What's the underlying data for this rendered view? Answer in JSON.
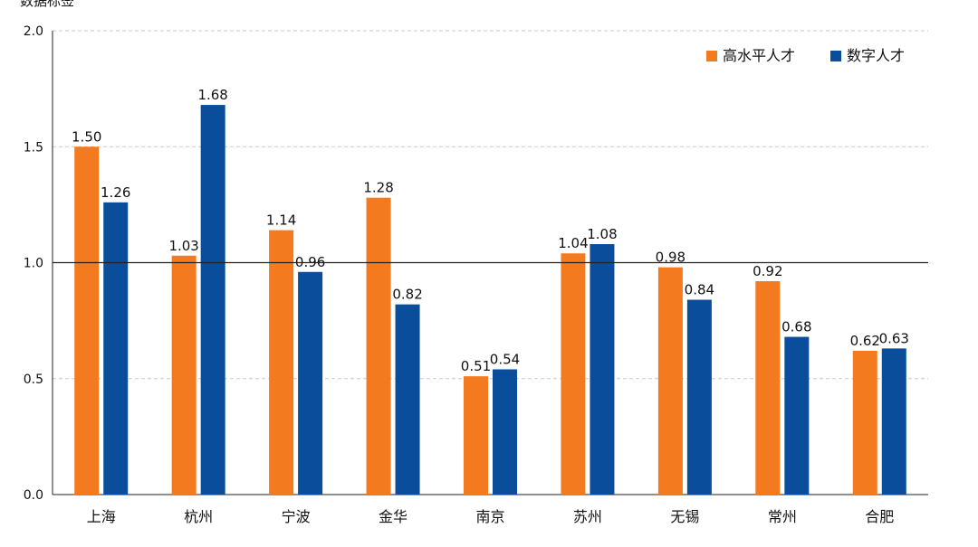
{
  "top_fragment": "数据标签",
  "chart_data": {
    "type": "bar",
    "categories": [
      "上海",
      "杭州",
      "宁波",
      "金华",
      "南京",
      "苏州",
      "无锡",
      "常州",
      "合肥"
    ],
    "series": [
      {
        "name": "高水平人才",
        "color": "#f37a1f",
        "values": [
          1.5,
          1.03,
          1.14,
          1.28,
          0.51,
          1.04,
          0.98,
          0.92,
          0.62
        ],
        "labels": [
          "1.50",
          "1.03",
          "1.14",
          "1.28",
          "0.51",
          "1.04",
          "0.98",
          "0.92",
          "0.62"
        ]
      },
      {
        "name": "数字人才",
        "color": "#0a4d9a",
        "values": [
          1.26,
          1.68,
          0.96,
          0.82,
          0.54,
          1.08,
          0.84,
          0.68,
          0.63
        ],
        "labels": [
          "1.26",
          "1.68",
          "0.96",
          "0.82",
          "0.54",
          "1.08",
          "0.84",
          "0.68",
          "0.63"
        ]
      }
    ],
    "y_ticks": [
      "0.0",
      "0.5",
      "1.0",
      "1.5",
      "2.0"
    ],
    "ylim": [
      0,
      2.0
    ],
    "reference_line": 1.0,
    "grid": "dashed horizontal",
    "legend_position": "top-right"
  }
}
